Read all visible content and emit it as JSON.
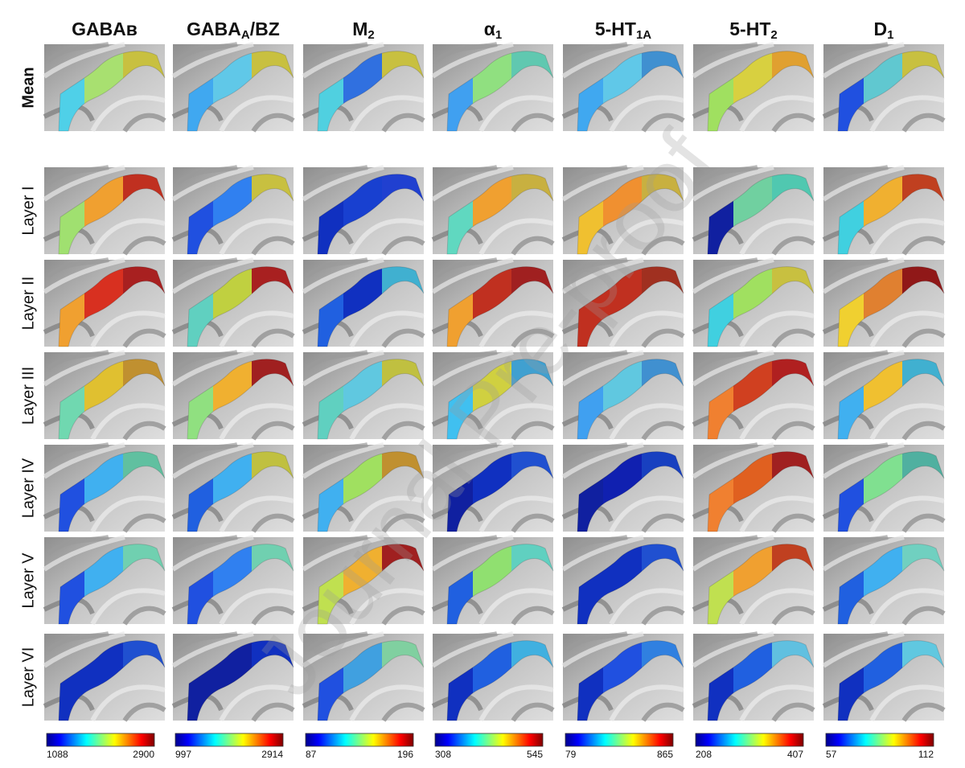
{
  "watermark": "Journal Pre-proof",
  "columns": [
    {
      "header": [
        {
          "text": "GABAʙ"
        }
      ],
      "colorbar": {
        "min": 1088,
        "max": 2900
      }
    },
    {
      "header": [
        {
          "text": "GABA"
        },
        {
          "text": "A",
          "sub": true
        },
        {
          "text": "/BZ"
        }
      ],
      "colorbar": {
        "min": 997,
        "max": 2914
      }
    },
    {
      "header": [
        {
          "text": "M"
        },
        {
          "text": "2",
          "sub": true
        }
      ],
      "colorbar": {
        "min": 87,
        "max": 196
      }
    },
    {
      "header": [
        {
          "text": "α"
        },
        {
          "text": "1",
          "sub": true
        }
      ],
      "colorbar": {
        "min": 308,
        "max": 545
      }
    },
    {
      "header": [
        {
          "text": "5-HT"
        },
        {
          "text": "1A",
          "sub": true
        }
      ],
      "colorbar": {
        "min": 79,
        "max": 865
      }
    },
    {
      "header": [
        {
          "text": "5-HT"
        },
        {
          "text": "2",
          "sub": true
        }
      ],
      "colorbar": {
        "min": 208,
        "max": 407
      }
    },
    {
      "header": [
        {
          "text": "D"
        },
        {
          "text": "1",
          "sub": true
        }
      ],
      "colorbar": {
        "min": 57,
        "max": 112
      }
    }
  ],
  "rows": [
    {
      "label": "Mean",
      "cells": [
        [
          "#4fd0e8",
          "#a8e070",
          "#c8c040"
        ],
        [
          "#40a8f0",
          "#60c8e8",
          "#c8c040"
        ],
        [
          "#50d0e0",
          "#3070e0",
          "#c8c040"
        ],
        [
          "#40a0f0",
          "#90e080",
          "#60c8b0"
        ],
        [
          "#40a8f0",
          "#60c8e8",
          "#4090d0"
        ],
        [
          "#a0e060",
          "#d8d040",
          "#e0a030"
        ],
        [
          "#2050e0",
          "#60c8d0",
          "#c8c040"
        ]
      ]
    },
    {
      "label": "Layer I",
      "cells": [
        [
          "#a0e070",
          "#f0a030",
          "#c03020"
        ],
        [
          "#2050e0",
          "#3080f0",
          "#c8c040"
        ],
        [
          "#1030c0",
          "#1840d0",
          "#2040d0"
        ],
        [
          "#60d8c0",
          "#f0a030",
          "#c8b040"
        ],
        [
          "#f0c030",
          "#f09030",
          "#c8b040"
        ],
        [
          "#1020a0",
          "#70d0a0",
          "#50c8b0"
        ],
        [
          "#40d0e0",
          "#f0b030",
          "#c04020"
        ]
      ]
    },
    {
      "label": "Layer II",
      "cells": [
        [
          "#f0a030",
          "#d83020",
          "#a82020"
        ],
        [
          "#60d0c0",
          "#c0d040",
          "#a82020"
        ],
        [
          "#2060e0",
          "#1030c0",
          "#40b0d0"
        ],
        [
          "#f0a030",
          "#c03020",
          "#a02020"
        ],
        [
          "#c03020",
          "#c03020",
          "#a03020"
        ],
        [
          "#40d0e0",
          "#a0e060",
          "#c8c040"
        ],
        [
          "#f0d030",
          "#e08030",
          "#901818"
        ]
      ]
    },
    {
      "label": "Layer III",
      "cells": [
        [
          "#70d8b0",
          "#e0c030",
          "#c09030"
        ],
        [
          "#90e080",
          "#f0b030",
          "#a02020"
        ],
        [
          "#60d0c0",
          "#60c8e0",
          "#c0c040"
        ],
        [
          "#40c0f0",
          "#d0d040",
          "#40a0d0"
        ],
        [
          "#40a0f0",
          "#60c8e0",
          "#4090d0"
        ],
        [
          "#f08030",
          "#d04020",
          "#b02020"
        ],
        [
          "#40b0f0",
          "#f0c030",
          "#40b0d0"
        ]
      ]
    },
    {
      "label": "Layer IV",
      "cells": [
        [
          "#2050e0",
          "#40b0f0",
          "#60c0a0"
        ],
        [
          "#2060e0",
          "#40b0f0",
          "#c0c040"
        ],
        [
          "#40b0f0",
          "#a0e060",
          "#c09030"
        ],
        [
          "#1020a0",
          "#1030c0",
          "#2050d0"
        ],
        [
          "#1020a0",
          "#1020b0",
          "#1840c0"
        ],
        [
          "#f08030",
          "#e06020",
          "#a02020"
        ],
        [
          "#2050e0",
          "#80e090",
          "#50b0a0"
        ]
      ]
    },
    {
      "label": "Layer V",
      "cells": [
        [
          "#2050e0",
          "#40b0f0",
          "#70d0b0"
        ],
        [
          "#2050e0",
          "#3080f0",
          "#70d0b0"
        ],
        [
          "#c0e050",
          "#f0b030",
          "#a02020"
        ],
        [
          "#2060e0",
          "#90e070",
          "#60d0c0"
        ],
        [
          "#1030c0",
          "#1030c0",
          "#2050d0"
        ],
        [
          "#c0e050",
          "#f0a030",
          "#c04020"
        ],
        [
          "#2060e0",
          "#40b0f0",
          "#70d0c0"
        ]
      ]
    },
    {
      "label": "Layer VI",
      "cells": [
        [
          "#1030c0",
          "#1030c0",
          "#2050d0"
        ],
        [
          "#1020a0",
          "#1020a0",
          "#1030c0"
        ],
        [
          "#2050e0",
          "#40a0e0",
          "#80d0a0"
        ],
        [
          "#1030c0",
          "#2060e0",
          "#40b0e0"
        ],
        [
          "#1030c0",
          "#2050e0",
          "#3080e0"
        ],
        [
          "#1030c0",
          "#2060e0",
          "#60c0e0"
        ],
        [
          "#1030c0",
          "#2060e0",
          "#60c8e0"
        ]
      ]
    }
  ]
}
